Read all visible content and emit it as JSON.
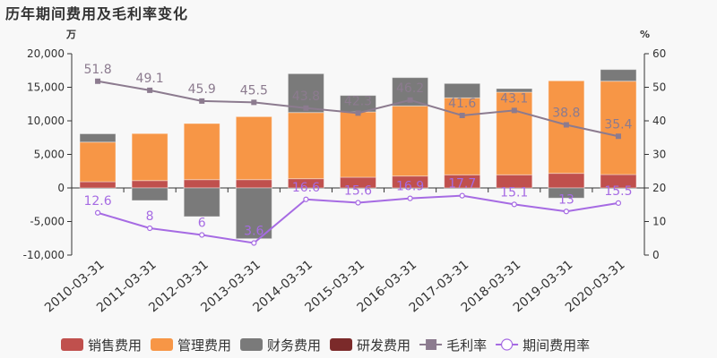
{
  "chart_data": {
    "type": "bar",
    "title": "历年期间费用及毛利率变化",
    "ylabel_left": "万",
    "ylabel_right": "%",
    "ylim_left": [
      -10000,
      20000
    ],
    "yticks_left": [
      "-10,000",
      "-5,000",
      "0",
      "5,000",
      "10,000",
      "15,000",
      "20,000"
    ],
    "ylim_right": [
      0,
      60
    ],
    "yticks_right": [
      "0",
      "10",
      "20",
      "30",
      "40",
      "50",
      "60"
    ],
    "categories": [
      "2010-03-31",
      "2011-03-31",
      "2012-03-31",
      "2013-03-31",
      "2014-03-31",
      "2015-03-31",
      "2016-03-31",
      "2017-03-31",
      "2018-03-31",
      "2019-03-31",
      "2020-03-31"
    ],
    "series": [
      {
        "name": "销售费用",
        "kind": "bar",
        "color": "#c0504d",
        "values": [
          930,
          1100,
          1240,
          1240,
          1380,
          1600,
          1780,
          1960,
          1960,
          2180,
          2000
        ]
      },
      {
        "name": "管理费用",
        "kind": "bar",
        "color": "#f79646",
        "values": [
          5900,
          7000,
          8360,
          9380,
          9860,
          9730,
          10440,
          11460,
          12310,
          13780,
          13910
        ]
      },
      {
        "name": "财务费用",
        "kind": "bar",
        "color": "#7a7a7a",
        "values": [
          1240,
          -1870,
          -4270,
          -7560,
          5780,
          2450,
          4220,
          2140,
          530,
          -1510,
          1730
        ]
      },
      {
        "name": "研发费用",
        "kind": "bar",
        "color": "#7b2a2a",
        "values": [
          0,
          0,
          0,
          0,
          0,
          0,
          0,
          0,
          0,
          0,
          0
        ]
      },
      {
        "name": "毛利率",
        "kind": "line",
        "axis": "right",
        "color": "#8c7b8f",
        "values": [
          51.8,
          49.1,
          45.9,
          45.5,
          43.8,
          42.3,
          46.2,
          41.6,
          43.1,
          38.8,
          35.4
        ],
        "labels": [
          "51.8",
          "49.1",
          "45.9",
          "45.5",
          "43.8",
          "42.3",
          "46.2",
          "41.6",
          "43.1",
          "38.8",
          "35.4"
        ]
      },
      {
        "name": "期间费用率",
        "kind": "line",
        "axis": "right",
        "color": "#a66be3",
        "values": [
          12.6,
          8,
          6,
          3.6,
          16.6,
          15.6,
          16.9,
          17.7,
          15.1,
          13,
          15.5
        ],
        "labels": [
          "12.6",
          "8",
          "6",
          "3.6",
          "16.6",
          "15.6",
          "16.9",
          "17.7",
          "15.1",
          "13",
          "15.5"
        ]
      }
    ],
    "grid": false,
    "legend": "bottom"
  }
}
